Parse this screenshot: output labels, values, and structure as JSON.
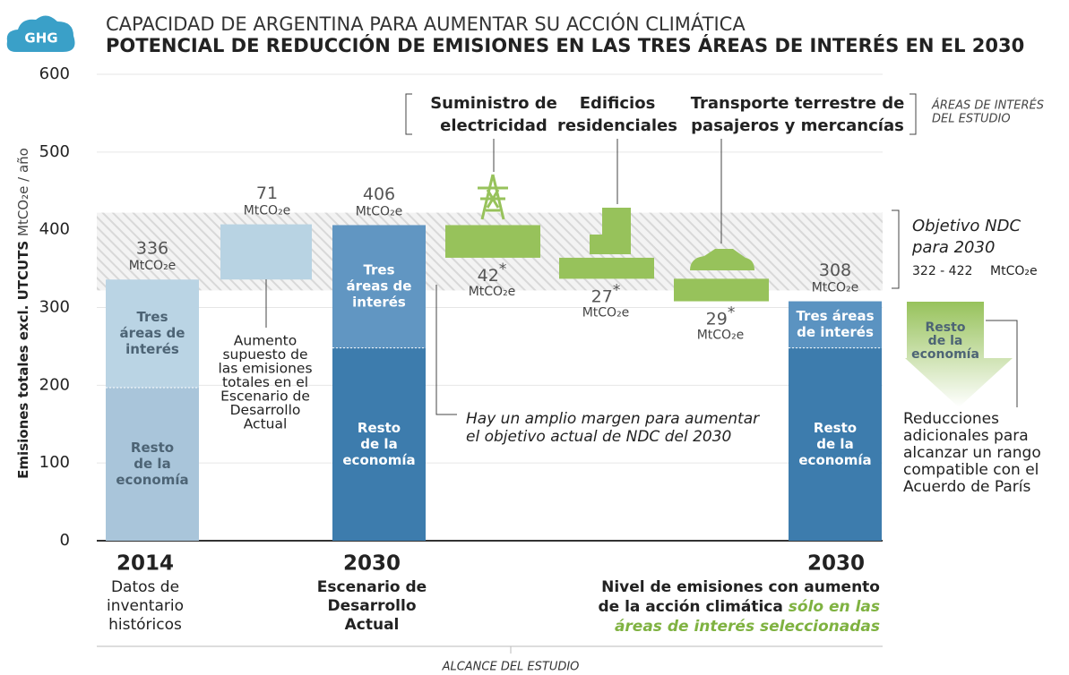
{
  "badge": "GHG",
  "chart_data": {
    "type": "waterfall",
    "supertitle": "CAPACIDAD DE ARGENTINA PARA AUMENTAR SU ACCIÓN CLIMÁTICA",
    "title": "POTENCIAL DE REDUCCIÓN DE EMISIONES EN LAS TRES ÁREAS DE INTERÉS EN EL 2030",
    "y_label": "Emisiones totales excl. UTCUTS",
    "y_unit": "MtCO₂e / año",
    "ylim": [
      0,
      600
    ],
    "yticks": [
      0,
      100,
      200,
      300,
      400,
      500,
      600
    ],
    "grid": true,
    "unit": "MtCO₂e",
    "bars": [
      {
        "kind": "total",
        "total": 336,
        "value_label": "336",
        "segments": [
          {
            "name": [
              "Resto",
              "de la",
              "economía"
            ],
            "value": 197,
            "color": "#a9c5da",
            "text_color": "#4d6475"
          },
          {
            "name": [
              "Tres",
              "áreas de",
              "interés"
            ],
            "value": 139,
            "color": "#bad4e4",
            "text_color": "#4d6475"
          }
        ],
        "x_label": "2014",
        "x_sublabel": [
          "Datos de",
          "inventario",
          "históricos"
        ]
      },
      {
        "kind": "increase",
        "value": 71,
        "value_label": "71",
        "color": "#b8d3e3",
        "note": [
          "Aumento",
          "supuesto de",
          "las emisiones",
          "totales en el",
          "Escenario de",
          "Desarrollo",
          "Actual"
        ]
      },
      {
        "kind": "total",
        "total": 406,
        "value_label": "406",
        "segments": [
          {
            "name": [
              "Resto",
              "de la",
              "economía"
            ],
            "value": 248,
            "color": "#3d7cad",
            "text_color": "#ffffff"
          },
          {
            "name": [
              "Tres",
              "áreas de",
              "interés"
            ],
            "value": 158,
            "color": "#6196c2",
            "text_color": "#ffffff"
          }
        ],
        "x_label": "2030",
        "x_sublabel": [
          "Escenario de",
          "Desarrollo",
          "Actual"
        ]
      },
      {
        "kind": "decrease",
        "value": 42,
        "value_label": "42",
        "footnote": "*",
        "area": [
          "Suministro de",
          "electricidad"
        ],
        "color": "#97c25b"
      },
      {
        "kind": "decrease",
        "value": 27,
        "value_label": "27",
        "footnote": "*",
        "area": [
          "Edificios",
          "residenciales"
        ],
        "color": "#97c25b"
      },
      {
        "kind": "decrease",
        "value": 29,
        "value_label": "29",
        "footnote": "*",
        "area": [
          "Transporte terrestre de",
          "pasajeros y mercancías"
        ],
        "color": "#97c25b"
      },
      {
        "kind": "total",
        "total": 308,
        "value_label": "308",
        "segments": [
          {
            "name": [
              "Resto",
              "de la",
              "economía"
            ],
            "value": 248,
            "color": "#3d7cad",
            "text_color": "#ffffff"
          },
          {
            "name": [
              "Tres áreas",
              "de interés"
            ],
            "value": 60,
            "color": "#5b93c1",
            "text_color": "#ffffff"
          }
        ],
        "x_label": "2030",
        "x_sublabel": [
          "Nivel de emisiones con aumento",
          "de la acción climática"
        ],
        "x_sublabel_emphasis": [
          "sólo en las",
          "áreas de interés seleccionadas"
        ]
      }
    ],
    "ndc": {
      "range": [
        322,
        422
      ],
      "range_label": "322 - 422",
      "label": [
        "Objetivo NDC",
        "para 2030"
      ]
    },
    "margin_note": [
      "Hay un amplio margen para aumentar",
      "el objetivo actual de NDC del 2030"
    ],
    "areas_header": [
      "ÁREAS DE INTERÉS",
      "DEL ESTUDIO"
    ],
    "extra_reduction": {
      "segment": [
        "Resto",
        "de la",
        "economía"
      ],
      "note": [
        "Reducciones",
        "adicionales para",
        "alcanzar un rango",
        "compatible con el",
        "Acuerdo de París"
      ]
    },
    "scope_label": "ALCANCE DEL ESTUDIO"
  }
}
